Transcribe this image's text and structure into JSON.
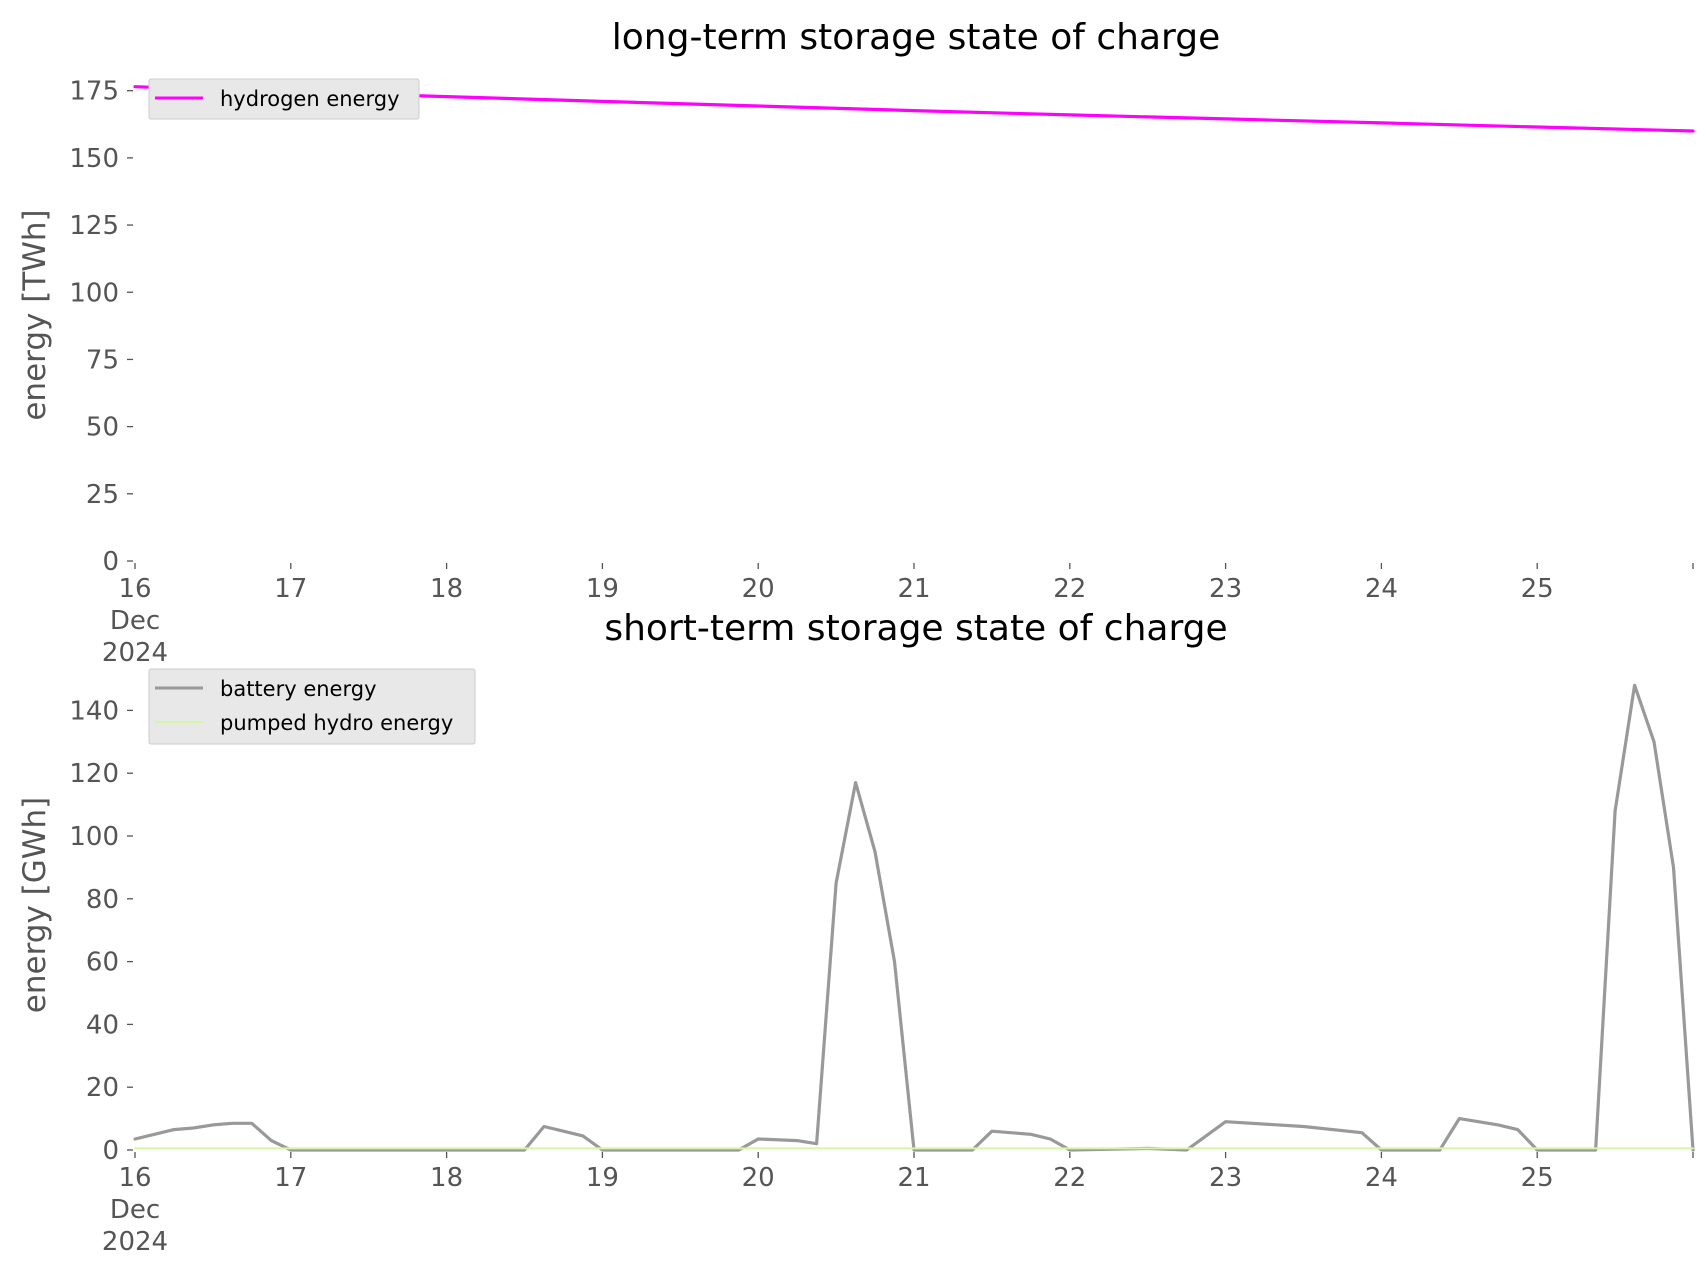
{
  "chart_data": [
    {
      "type": "line",
      "title": "long-term storage state of charge",
      "xlabel": "",
      "ylabel": "energy [TWh]",
      "x_axis": {
        "type": "date",
        "range": [
          "2024-12-16",
          "2024-12-26"
        ],
        "tick_labels": [
          "16",
          "17",
          "18",
          "19",
          "20",
          "21",
          "22",
          "23",
          "24",
          "25",
          ""
        ],
        "first_tick_extra": [
          "Dec",
          "2024"
        ]
      },
      "ylim": [
        0,
        176
      ],
      "y_ticks": [
        0,
        25,
        50,
        75,
        100,
        125,
        150,
        175
      ],
      "grid": false,
      "legend": {
        "placement": "top-left",
        "entries": [
          "hydrogen energy"
        ]
      },
      "series": [
        {
          "name": "hydrogen energy",
          "color": "#ff00ff",
          "x": [
            "2024-12-16",
            "2024-12-17",
            "2024-12-18",
            "2024-12-19",
            "2024-12-20",
            "2024-12-21",
            "2024-12-22",
            "2024-12-23",
            "2024-12-24",
            "2024-12-25",
            "2024-12-26"
          ],
          "values": [
            176.5,
            174.5,
            172.8,
            171.0,
            169.3,
            167.6,
            166.0,
            164.5,
            163.0,
            161.5,
            160.0
          ]
        }
      ]
    },
    {
      "type": "line",
      "title": "short-term storage state of charge",
      "xlabel": "",
      "ylabel": "energy [GWh]",
      "x_axis": {
        "type": "date",
        "range": [
          "2024-12-16",
          "2024-12-26"
        ],
        "tick_labels": [
          "16",
          "17",
          "18",
          "19",
          "20",
          "21",
          "22",
          "23",
          "24",
          "25",
          ""
        ],
        "first_tick_extra": [
          "Dec",
          "2024"
        ]
      },
      "ylim": [
        0,
        150
      ],
      "y_ticks": [
        0,
        20,
        40,
        60,
        80,
        100,
        120,
        140
      ],
      "grid": false,
      "legend": {
        "placement": "top-left",
        "entries": [
          "battery energy",
          "pumped hydro energy"
        ]
      },
      "series": [
        {
          "name": "battery energy",
          "color": "#999999",
          "x": [
            "2024-12-16T00:00",
            "2024-12-16T03:00",
            "2024-12-16T06:00",
            "2024-12-16T09:00",
            "2024-12-16T12:00",
            "2024-12-16T15:00",
            "2024-12-16T18:00",
            "2024-12-16T21:00",
            "2024-12-17T00:00",
            "2024-12-18T12:00",
            "2024-12-18T15:00",
            "2024-12-18T18:00",
            "2024-12-18T21:00",
            "2024-12-19T00:00",
            "2024-12-19T21:00",
            "2024-12-20T00:00",
            "2024-12-20T06:00",
            "2024-12-20T09:00",
            "2024-12-20T12:00",
            "2024-12-20T15:00",
            "2024-12-20T18:00",
            "2024-12-20T21:00",
            "2024-12-21T00:00",
            "2024-12-21T09:00",
            "2024-12-21T12:00",
            "2024-12-21T18:00",
            "2024-12-21T21:00",
            "2024-12-22T00:00",
            "2024-12-22T12:00",
            "2024-12-22T18:00",
            "2024-12-23T00:00",
            "2024-12-23T12:00",
            "2024-12-23T21:00",
            "2024-12-24T00:00",
            "2024-12-24T09:00",
            "2024-12-24T12:00",
            "2024-12-24T18:00",
            "2024-12-24T21:00",
            "2024-12-25T00:00",
            "2024-12-25T09:00",
            "2024-12-25T12:00",
            "2024-12-25T15:00",
            "2024-12-25T18:00",
            "2024-12-25T21:00",
            "2024-12-26T00:00"
          ],
          "values": [
            3.5,
            5,
            6.5,
            7,
            8,
            8.5,
            8.5,
            3,
            0,
            0,
            7.5,
            6,
            4.5,
            0,
            0,
            3.5,
            3,
            2,
            85,
            117,
            95,
            60,
            0,
            0,
            6,
            5,
            3.5,
            0,
            0.5,
            0,
            9,
            7.5,
            5.5,
            0,
            0,
            10,
            8,
            6.5,
            0,
            0,
            108,
            148,
            130,
            90,
            0
          ]
        },
        {
          "name": "pumped hydro energy",
          "color": "#d2f7a0",
          "x": [
            "2024-12-16",
            "2024-12-26"
          ],
          "values": [
            0.5,
            0.5
          ]
        }
      ]
    }
  ]
}
